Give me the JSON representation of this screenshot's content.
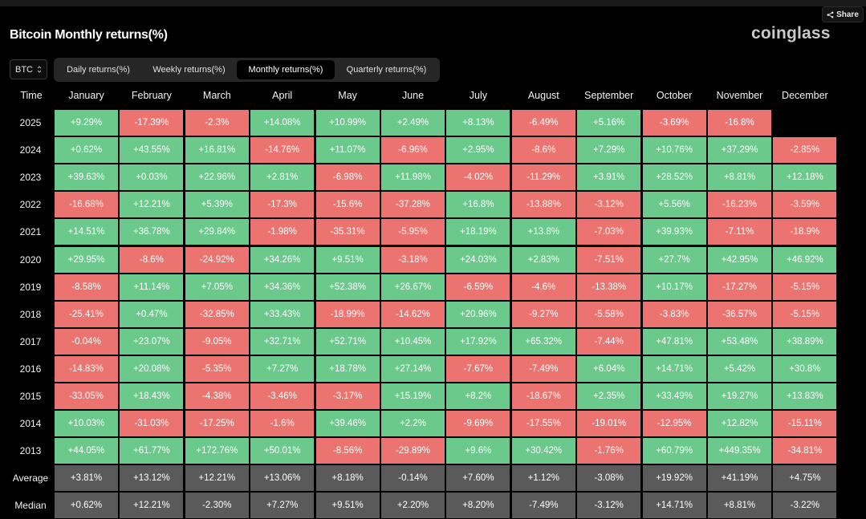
{
  "title": "Bitcoin Monthly returns(%)",
  "brand": "coinglass",
  "share_label": "Share",
  "coin_select": {
    "value": "BTC"
  },
  "tabs": [
    {
      "label": "Daily returns(%)",
      "active": false
    },
    {
      "label": "Weekly returns(%)",
      "active": false
    },
    {
      "label": "Monthly returns(%)",
      "active": true
    },
    {
      "label": "Quarterly returns(%)",
      "active": false
    }
  ],
  "colors": {
    "positive": "#6ac98b",
    "negative": "#eb7470",
    "stat": "#5a5a5a",
    "background": "#000000"
  },
  "icons": {
    "share": "share-icon",
    "select": "chevron-updown-icon"
  },
  "chart_data": {
    "type": "table",
    "corner_label": "Time",
    "columns": [
      "January",
      "February",
      "March",
      "April",
      "May",
      "June",
      "July",
      "August",
      "September",
      "October",
      "November",
      "December"
    ],
    "rows": [
      {
        "label": "2025",
        "values": [
          "+9.29%",
          "-17.39%",
          "-2.3%",
          "+14.08%",
          "+10.99%",
          "+2.49%",
          "+8.13%",
          "-6.49%",
          "+5.16%",
          "-3.69%",
          "-16.8%",
          ""
        ]
      },
      {
        "label": "2024",
        "values": [
          "+0.62%",
          "+43.55%",
          "+16.81%",
          "-14.76%",
          "+11.07%",
          "-6.96%",
          "+2.95%",
          "-8.6%",
          "+7.29%",
          "+10.76%",
          "+37.29%",
          "-2.85%"
        ]
      },
      {
        "label": "2023",
        "values": [
          "+39.63%",
          "+0.03%",
          "+22.96%",
          "+2.81%",
          "-6.98%",
          "+11.98%",
          "-4.02%",
          "-11.29%",
          "+3.91%",
          "+28.52%",
          "+8.81%",
          "+12.18%"
        ]
      },
      {
        "label": "2022",
        "values": [
          "-16.68%",
          "+12.21%",
          "+5.39%",
          "-17.3%",
          "-15.6%",
          "-37.28%",
          "+16.8%",
          "-13.88%",
          "-3.12%",
          "+5.56%",
          "-16.23%",
          "-3.59%"
        ]
      },
      {
        "label": "2021",
        "values": [
          "+14.51%",
          "+36.78%",
          "+29.84%",
          "-1.98%",
          "-35.31%",
          "-5.95%",
          "+18.19%",
          "+13.8%",
          "-7.03%",
          "+39.93%",
          "-7.11%",
          "-18.9%"
        ]
      },
      {
        "label": "2020",
        "values": [
          "+29.95%",
          "-8.6%",
          "-24.92%",
          "+34.26%",
          "+9.51%",
          "-3.18%",
          "+24.03%",
          "+2.83%",
          "-7.51%",
          "+27.7%",
          "+42.95%",
          "+46.92%"
        ]
      },
      {
        "label": "2019",
        "values": [
          "-8.58%",
          "+11.14%",
          "+7.05%",
          "+34.36%",
          "+52.38%",
          "+26.67%",
          "-6.59%",
          "-4.6%",
          "-13.38%",
          "+10.17%",
          "-17.27%",
          "-5.15%"
        ]
      },
      {
        "label": "2018",
        "values": [
          "-25.41%",
          "+0.47%",
          "-32.85%",
          "+33.43%",
          "-18.99%",
          "-14.62%",
          "+20.96%",
          "-9.27%",
          "-5.58%",
          "-3.83%",
          "-36.57%",
          "-5.15%"
        ]
      },
      {
        "label": "2017",
        "values": [
          "-0.04%",
          "+23.07%",
          "-9.05%",
          "+32.71%",
          "+52.71%",
          "+10.45%",
          "+17.92%",
          "+65.32%",
          "-7.44%",
          "+47.81%",
          "+53.48%",
          "+38.89%"
        ]
      },
      {
        "label": "2016",
        "values": [
          "-14.83%",
          "+20.08%",
          "-5.35%",
          "+7.27%",
          "+18.78%",
          "+27.14%",
          "-7.67%",
          "-7.49%",
          "+6.04%",
          "+14.71%",
          "+5.42%",
          "+30.8%"
        ]
      },
      {
        "label": "2015",
        "values": [
          "-33.05%",
          "+18.43%",
          "-4.38%",
          "-3.46%",
          "-3.17%",
          "+15.19%",
          "+8.2%",
          "-18.67%",
          "+2.35%",
          "+33.49%",
          "+19.27%",
          "+13.83%"
        ]
      },
      {
        "label": "2014",
        "values": [
          "+10.03%",
          "-31.03%",
          "-17.25%",
          "-1.6%",
          "+39.46%",
          "+2.2%",
          "-9.69%",
          "-17.55%",
          "-19.01%",
          "-12.95%",
          "+12.82%",
          "-15.11%"
        ]
      },
      {
        "label": "2013",
        "values": [
          "+44.05%",
          "+61.77%",
          "+172.76%",
          "+50.01%",
          "-8.56%",
          "-29.89%",
          "+9.6%",
          "+30.42%",
          "-1.76%",
          "+60.79%",
          "+449.35%",
          "-34.81%"
        ]
      }
    ],
    "summary_rows": [
      {
        "label": "Average",
        "values": [
          "+3.81%",
          "+13.12%",
          "+12.21%",
          "+13.06%",
          "+8.18%",
          "-0.14%",
          "+7.60%",
          "+1.12%",
          "-3.08%",
          "+19.92%",
          "+41.19%",
          "+4.75%"
        ]
      },
      {
        "label": "Median",
        "values": [
          "+0.62%",
          "+12.21%",
          "-2.30%",
          "+7.27%",
          "+9.51%",
          "+2.20%",
          "+8.20%",
          "-7.49%",
          "-3.12%",
          "+14.71%",
          "+8.81%",
          "-3.22%"
        ]
      }
    ]
  }
}
